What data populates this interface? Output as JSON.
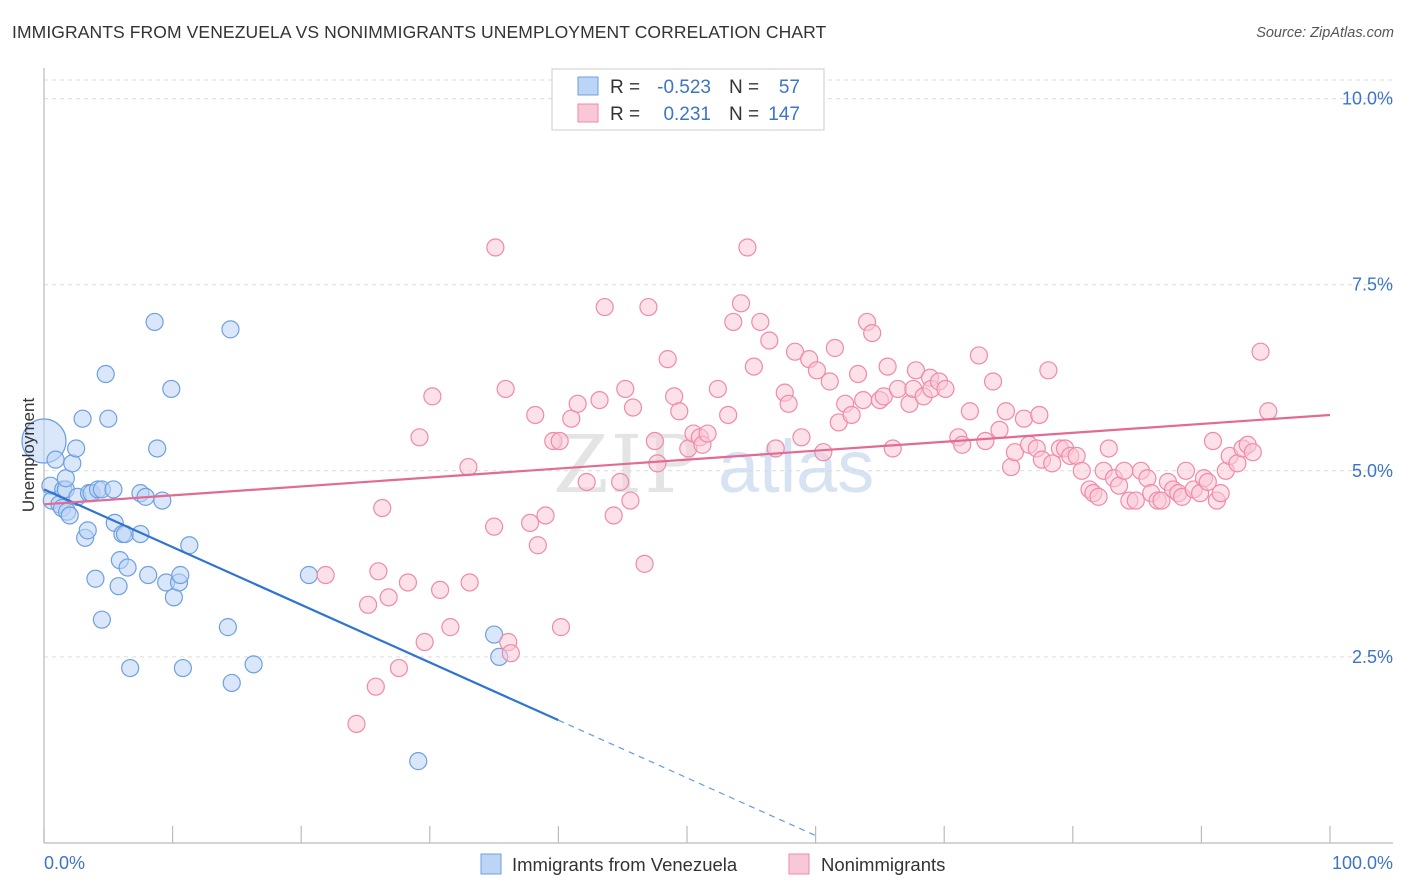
{
  "header": {
    "title": "IMMIGRANTS FROM VENEZUELA VS NONIMMIGRANTS UNEMPLOYMENT CORRELATION CHART",
    "source": "Source: ZipAtlas.com"
  },
  "watermark": {
    "zip": "ZIP",
    "atlas": "atlas"
  },
  "legend": {
    "rows": [
      {
        "r_label": "R =",
        "r_value": "-0.523",
        "n_label": "N =",
        "n_value": "57",
        "color": "#6ea0e0"
      },
      {
        "r_label": "R =",
        "r_value": "0.231",
        "n_label": "N =",
        "n_value": "147",
        "color": "#f08aa8"
      }
    ]
  },
  "chart_data": {
    "type": "scatter",
    "title": "IMMIGRANTS FROM VENEZUELA VS NONIMMIGRANTS UNEMPLOYMENT CORRELATION CHART",
    "xlabel": "",
    "ylabel": "Unemployment",
    "xlim": [
      0,
      100
    ],
    "ylim": [
      0,
      10.25
    ],
    "x_tick_labels": [
      "0.0%",
      "100.0%"
    ],
    "y_ticks": [
      2.5,
      5.0,
      7.5,
      10.0
    ],
    "y_tick_labels": [
      "2.5%",
      "5.0%",
      "7.5%",
      "10.0%"
    ],
    "grid": "horizontal dashed",
    "legend_position": "top-center",
    "series": [
      {
        "name": "Immigrants from Venezuela",
        "color": "#6ea0e0",
        "trend": {
          "x": [
            0,
            40
          ],
          "y": [
            4.75,
            1.65
          ],
          "dashed_to": [
            60,
            0.1
          ]
        },
        "points": [
          [
            0.0,
            5.4
          ],
          [
            0.5,
            4.8
          ],
          [
            0.6,
            4.6
          ],
          [
            0.9,
            5.15
          ],
          [
            1.2,
            4.55
          ],
          [
            1.4,
            4.5
          ],
          [
            1.5,
            4.75
          ],
          [
            1.7,
            4.75
          ],
          [
            1.7,
            4.9
          ],
          [
            1.8,
            4.45
          ],
          [
            2.0,
            4.4
          ],
          [
            2.2,
            5.1
          ],
          [
            2.5,
            5.3
          ],
          [
            2.6,
            4.65
          ],
          [
            3.0,
            5.7
          ],
          [
            3.2,
            4.1
          ],
          [
            3.4,
            4.2
          ],
          [
            3.5,
            4.7
          ],
          [
            3.7,
            4.7
          ],
          [
            4.0,
            3.55
          ],
          [
            4.2,
            4.75
          ],
          [
            4.5,
            3.0
          ],
          [
            4.5,
            4.75
          ],
          [
            4.8,
            6.3
          ],
          [
            5.0,
            5.7
          ],
          [
            5.4,
            4.75
          ],
          [
            5.5,
            4.3
          ],
          [
            5.8,
            3.45
          ],
          [
            5.9,
            3.8
          ],
          [
            6.1,
            4.15
          ],
          [
            6.3,
            4.15
          ],
          [
            6.5,
            3.7
          ],
          [
            6.7,
            2.35
          ],
          [
            7.5,
            4.15
          ],
          [
            7.5,
            4.7
          ],
          [
            7.9,
            4.65
          ],
          [
            8.1,
            3.6
          ],
          [
            8.6,
            7.0
          ],
          [
            8.8,
            5.3
          ],
          [
            9.2,
            4.6
          ],
          [
            9.5,
            3.5
          ],
          [
            9.9,
            6.1
          ],
          [
            10.1,
            3.3
          ],
          [
            10.5,
            3.5
          ],
          [
            10.6,
            3.6
          ],
          [
            10.8,
            2.35
          ],
          [
            11.3,
            4.0
          ],
          [
            14.3,
            2.9
          ],
          [
            14.5,
            6.9
          ],
          [
            14.6,
            2.15
          ],
          [
            16.3,
            2.4
          ],
          [
            20.6,
            3.6
          ],
          [
            29.1,
            1.1
          ],
          [
            35.0,
            2.8
          ],
          [
            35.4,
            2.5
          ]
        ]
      },
      {
        "name": "Nonimmigrants",
        "color": "#f08aa8",
        "trend": {
          "x": [
            0,
            100
          ],
          "y": [
            4.55,
            5.75
          ]
        },
        "points": [
          [
            21.9,
            3.6
          ],
          [
            24.3,
            1.6
          ],
          [
            25.2,
            3.2
          ],
          [
            25.8,
            2.1
          ],
          [
            26.0,
            3.65
          ],
          [
            26.3,
            4.5
          ],
          [
            26.8,
            3.3
          ],
          [
            27.6,
            2.35
          ],
          [
            28.3,
            3.5
          ],
          [
            29.2,
            5.45
          ],
          [
            29.6,
            2.7
          ],
          [
            30.2,
            6.0
          ],
          [
            30.8,
            3.4
          ],
          [
            31.6,
            2.9
          ],
          [
            33.0,
            5.05
          ],
          [
            33.1,
            3.5
          ],
          [
            35.0,
            4.25
          ],
          [
            35.1,
            8.0
          ],
          [
            35.9,
            6.1
          ],
          [
            36.1,
            2.7
          ],
          [
            36.3,
            2.55
          ],
          [
            37.8,
            4.3
          ],
          [
            38.2,
            5.75
          ],
          [
            38.4,
            4.0
          ],
          [
            39.0,
            4.4
          ],
          [
            39.6,
            5.4
          ],
          [
            40.1,
            5.4
          ],
          [
            40.2,
            2.9
          ],
          [
            41.0,
            5.7
          ],
          [
            41.5,
            5.9
          ],
          [
            42.2,
            4.85
          ],
          [
            43.2,
            5.95
          ],
          [
            43.6,
            7.2
          ],
          [
            44.3,
            4.4
          ],
          [
            44.8,
            4.85
          ],
          [
            45.2,
            6.1
          ],
          [
            45.6,
            4.6
          ],
          [
            45.8,
            5.85
          ],
          [
            46.7,
            3.75
          ],
          [
            47.0,
            7.2
          ],
          [
            47.5,
            5.4
          ],
          [
            47.7,
            5.1
          ],
          [
            48.5,
            6.5
          ],
          [
            49.0,
            6.0
          ],
          [
            49.4,
            5.8
          ],
          [
            50.1,
            5.3
          ],
          [
            50.5,
            5.5
          ],
          [
            51.0,
            5.45
          ],
          [
            51.2,
            5.35
          ],
          [
            51.6,
            5.5
          ],
          [
            52.4,
            6.1
          ],
          [
            53.2,
            5.75
          ],
          [
            53.6,
            7.0
          ],
          [
            54.2,
            7.25
          ],
          [
            54.7,
            8.0
          ],
          [
            55.2,
            6.4
          ],
          [
            55.7,
            7.0
          ],
          [
            56.4,
            6.75
          ],
          [
            56.9,
            5.3
          ],
          [
            57.6,
            6.05
          ],
          [
            57.9,
            5.9
          ],
          [
            58.4,
            6.6
          ],
          [
            58.9,
            5.45
          ],
          [
            59.5,
            6.5
          ],
          [
            60.1,
            6.35
          ],
          [
            60.6,
            5.25
          ],
          [
            61.1,
            6.2
          ],
          [
            61.5,
            6.65
          ],
          [
            61.8,
            5.65
          ],
          [
            62.3,
            5.9
          ],
          [
            62.8,
            5.75
          ],
          [
            63.3,
            6.3
          ],
          [
            63.7,
            5.95
          ],
          [
            64.0,
            7.0
          ],
          [
            64.4,
            6.85
          ],
          [
            65.0,
            5.95
          ],
          [
            65.3,
            6.0
          ],
          [
            65.6,
            6.4
          ],
          [
            66.0,
            5.3
          ],
          [
            66.4,
            6.1
          ],
          [
            67.3,
            5.9
          ],
          [
            67.6,
            6.1
          ],
          [
            67.8,
            6.35
          ],
          [
            68.4,
            6.0
          ],
          [
            68.9,
            6.25
          ],
          [
            69.0,
            6.1
          ],
          [
            69.6,
            6.2
          ],
          [
            70.1,
            6.1
          ],
          [
            71.1,
            5.45
          ],
          [
            71.4,
            5.35
          ],
          [
            72.0,
            5.8
          ],
          [
            72.7,
            6.55
          ],
          [
            73.2,
            5.4
          ],
          [
            73.8,
            6.2
          ],
          [
            74.3,
            5.55
          ],
          [
            74.8,
            5.8
          ],
          [
            75.2,
            5.05
          ],
          [
            75.5,
            5.25
          ],
          [
            76.2,
            5.7
          ],
          [
            76.6,
            5.35
          ],
          [
            77.2,
            5.3
          ],
          [
            77.4,
            5.75
          ],
          [
            77.6,
            5.15
          ],
          [
            78.1,
            6.35
          ],
          [
            78.4,
            5.1
          ],
          [
            79.0,
            5.3
          ],
          [
            79.4,
            5.3
          ],
          [
            79.8,
            5.2
          ],
          [
            80.3,
            5.2
          ],
          [
            80.7,
            5.0
          ],
          [
            81.3,
            4.75
          ],
          [
            81.6,
            4.7
          ],
          [
            82.0,
            4.65
          ],
          [
            82.4,
            5.0
          ],
          [
            82.8,
            5.3
          ],
          [
            83.2,
            4.9
          ],
          [
            83.6,
            4.8
          ],
          [
            84.0,
            5.0
          ],
          [
            84.4,
            4.6
          ],
          [
            84.9,
            4.6
          ],
          [
            85.3,
            5.0
          ],
          [
            85.8,
            4.9
          ],
          [
            86.1,
            4.7
          ],
          [
            86.6,
            4.6
          ],
          [
            86.9,
            4.6
          ],
          [
            87.4,
            4.85
          ],
          [
            87.8,
            4.75
          ],
          [
            88.2,
            4.7
          ],
          [
            88.5,
            4.65
          ],
          [
            88.8,
            5.0
          ],
          [
            89.4,
            4.75
          ],
          [
            89.9,
            4.7
          ],
          [
            90.2,
            4.9
          ],
          [
            90.5,
            4.85
          ],
          [
            90.9,
            5.4
          ],
          [
            91.2,
            4.6
          ],
          [
            91.5,
            4.7
          ],
          [
            91.9,
            5.0
          ],
          [
            92.2,
            5.2
          ],
          [
            92.8,
            5.1
          ],
          [
            93.2,
            5.3
          ],
          [
            93.6,
            5.35
          ],
          [
            94.0,
            5.25
          ],
          [
            94.6,
            6.6
          ],
          [
            95.2,
            5.8
          ]
        ]
      }
    ]
  },
  "bottom_legend": {
    "items": [
      {
        "label": "Immigrants from Venezuela",
        "color": "#6ea0e0"
      },
      {
        "label": "Nonimmigrants",
        "color": "#f08aa8"
      }
    ]
  }
}
